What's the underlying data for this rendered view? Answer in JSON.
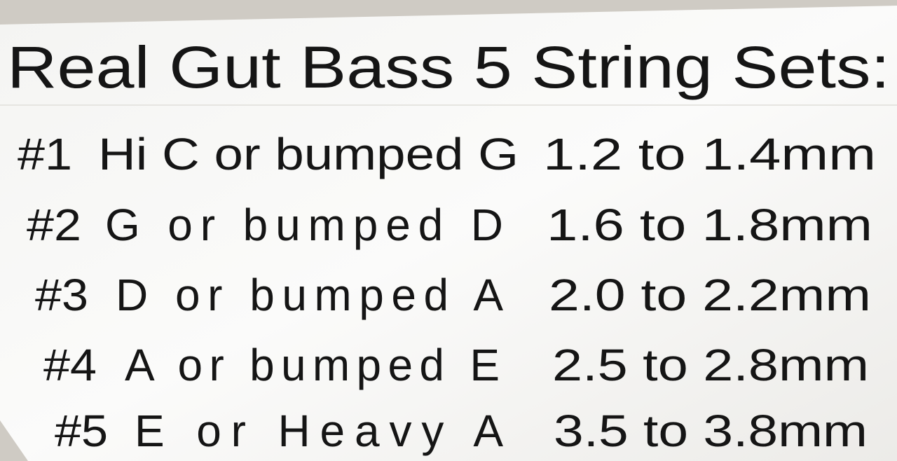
{
  "title": "Real Gut Bass 5 String Sets:",
  "rows": [
    [
      "#1",
      "Hi C or bumped G",
      "1.2 to 1.4mm"
    ],
    [
      "#2",
      "G or bumped D",
      "1.6 to 1.8mm"
    ],
    [
      "#3",
      "D or bumped A",
      "2.0 to 2.2mm"
    ],
    [
      "#4",
      "A or bumped E",
      "2.5 to 2.8mm"
    ],
    [
      "#5",
      "E or Heavy A",
      "3.5 to 3.8mm"
    ]
  ]
}
